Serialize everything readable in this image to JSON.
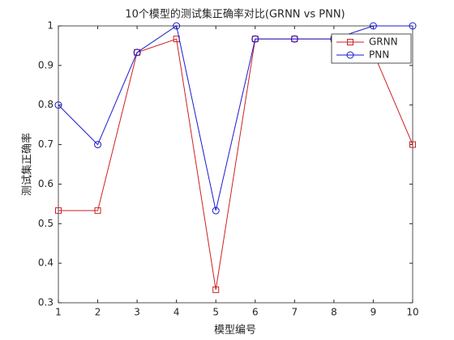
{
  "chart_data": {
    "type": "line",
    "title": "10个模型的测试集正确率对比(GRNN vs PNN)",
    "xlabel": "模型编号",
    "ylabel": "测试集正确率",
    "x": [
      1,
      2,
      3,
      4,
      5,
      6,
      7,
      8,
      9,
      10
    ],
    "series": [
      {
        "name": "GRNN",
        "color": "#cc2222",
        "marker": "square",
        "values": [
          0.533,
          0.533,
          0.933,
          0.967,
          0.333,
          0.967,
          0.967,
          0.967,
          0.933,
          0.7
        ]
      },
      {
        "name": "PNN",
        "color": "#1a1acc",
        "marker": "circle",
        "values": [
          0.8,
          0.7,
          0.933,
          1,
          0.533,
          0.967,
          0.967,
          0.967,
          1,
          1
        ]
      }
    ],
    "xlim": [
      1,
      10
    ],
    "xticks": [
      1,
      2,
      3,
      4,
      5,
      6,
      7,
      8,
      9,
      10
    ],
    "ylim": [
      0.3,
      1
    ],
    "yticks": [
      0.3,
      0.4,
      0.5,
      0.6,
      0.7,
      0.8,
      0.9,
      1
    ],
    "grid": false,
    "legend": "upper right"
  }
}
